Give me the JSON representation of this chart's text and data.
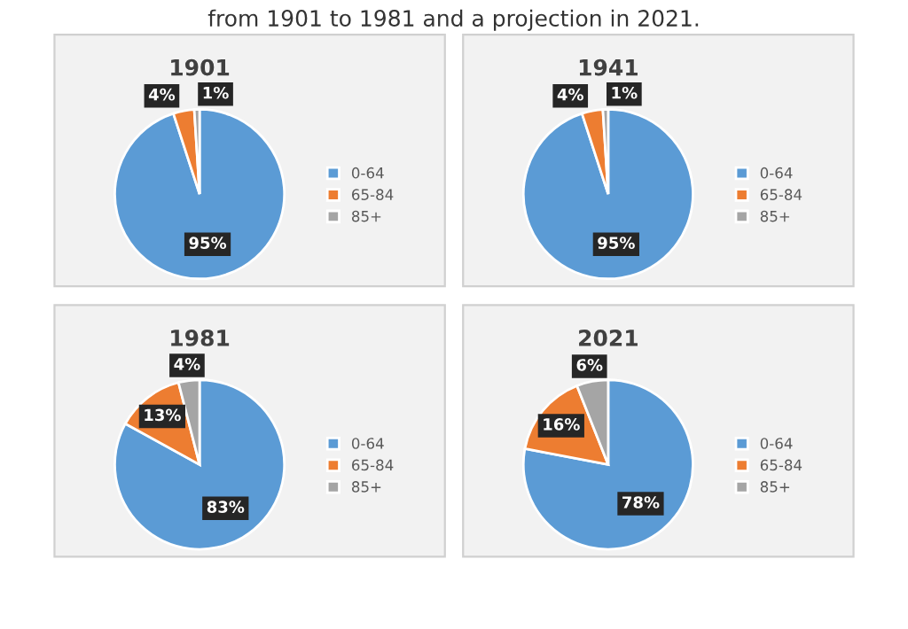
{
  "chart_data": [
    {
      "type": "pie",
      "title": "1901",
      "categories": [
        "0-64",
        "65-84",
        "85+"
      ],
      "values": [
        95,
        4,
        1
      ],
      "colors": [
        "#5b9bd5",
        "#ed7d31",
        "#a5a5a5"
      ],
      "value_labels": [
        "95%",
        "4%",
        "1%"
      ],
      "legend": "right",
      "annotations": [
        "from 1901 to 1981 and a projection in 2021."
      ]
    },
    {
      "type": "pie",
      "title": "1941",
      "categories": [
        "0-64",
        "65-84",
        "85+"
      ],
      "values": [
        95,
        4,
        1
      ],
      "colors": [
        "#5b9bd5",
        "#ed7d31",
        "#a5a5a5"
      ],
      "value_labels": [
        "95%",
        "4%",
        "1%"
      ],
      "legend": "right"
    },
    {
      "type": "pie",
      "title": "1981",
      "categories": [
        "0-64",
        "65-84",
        "85+"
      ],
      "values": [
        83,
        13,
        4
      ],
      "colors": [
        "#5b9bd5",
        "#ed7d31",
        "#a5a5a5"
      ],
      "value_labels": [
        "83%",
        "13%",
        "4%"
      ],
      "legend": "right"
    },
    {
      "type": "pie",
      "title": "2021",
      "categories": [
        "0-64",
        "65-84",
        "85+"
      ],
      "values": [
        78,
        16,
        6
      ],
      "colors": [
        "#5b9bd5",
        "#ed7d31",
        "#a5a5a5"
      ],
      "value_labels": [
        "78%",
        "16%",
        "6%"
      ],
      "legend": "right"
    }
  ]
}
